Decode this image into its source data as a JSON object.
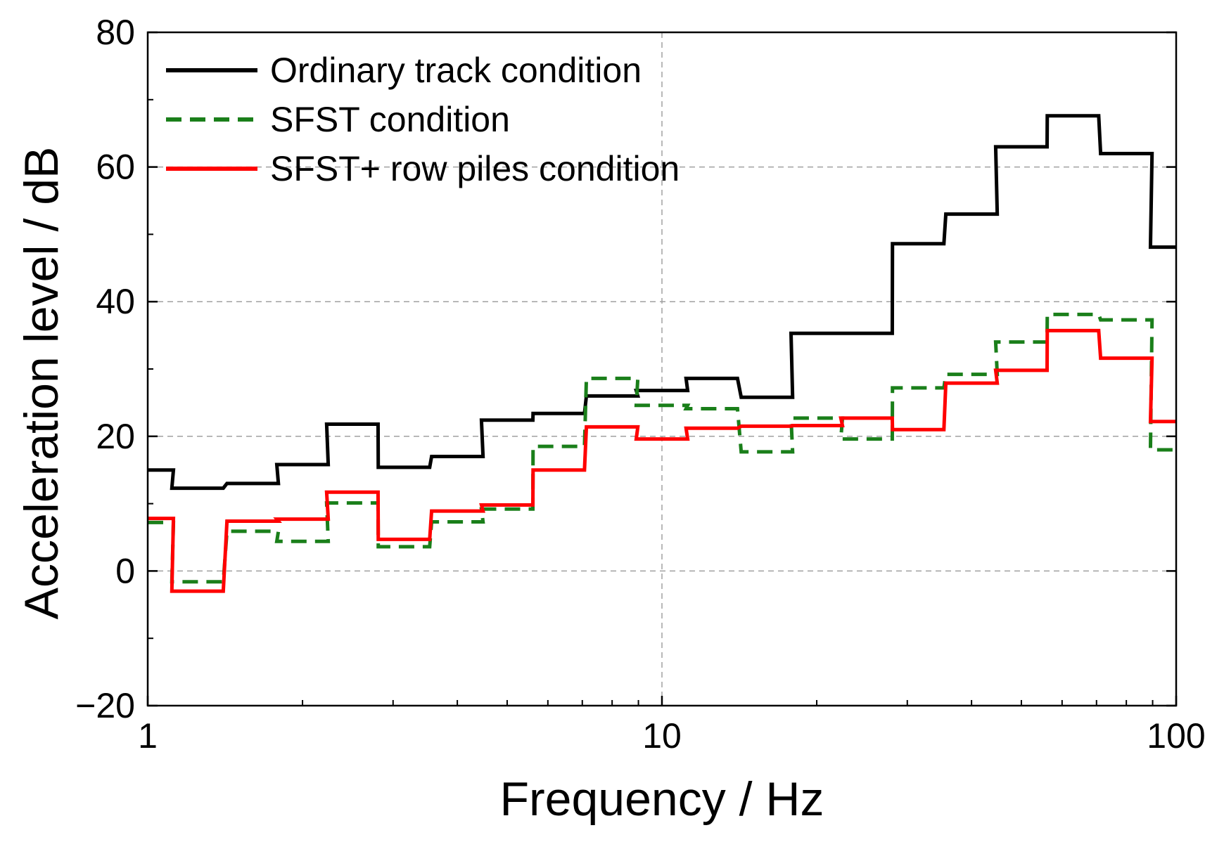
{
  "chart_data": {
    "type": "line",
    "step": true,
    "title": "",
    "xlabel": "Frequency / Hz",
    "ylabel": "Acceleration level / dB",
    "xscale": "log",
    "xlim": [
      1,
      100
    ],
    "ylim": [
      -20,
      80
    ],
    "xticks": [
      1,
      10,
      100
    ],
    "xtick_labels": [
      "1",
      "10",
      "100"
    ],
    "yticks": [
      -20,
      0,
      20,
      40,
      60,
      80
    ],
    "ytick_labels": [
      "−20",
      "0",
      "20",
      "40",
      "60",
      "80"
    ],
    "grid": true,
    "legend_position": "top-left",
    "bands_hz": [
      1,
      1.25,
      1.6,
      2,
      2.5,
      3.15,
      4,
      5,
      6.3,
      8,
      10,
      12.5,
      16,
      20,
      25,
      31.5,
      40,
      50,
      63,
      80,
      100
    ],
    "series": [
      {
        "name": "Ordinary track condition",
        "color": "#000000",
        "dash": "solid",
        "values": [
          15,
          12.3,
          13,
          15.8,
          21.8,
          15.4,
          17,
          22.4,
          23.4,
          26,
          26.8,
          28.6,
          25.8,
          35.3,
          35.3,
          48.6,
          53,
          63,
          67.6,
          62,
          48.1
        ]
      },
      {
        "name": "SFST condition",
        "color": "#1a7f1a",
        "dash": "dashed",
        "values": [
          7.2,
          -1.6,
          5.9,
          4.4,
          10.1,
          3.6,
          7.3,
          9.2,
          18.5,
          28.6,
          24.6,
          24.1,
          17.7,
          22.7,
          19.6,
          27.2,
          29.2,
          34,
          38.1,
          37.3,
          18
        ]
      },
      {
        "name": "SFST+ row piles condition",
        "color": "#ff0000",
        "dash": "solid",
        "values": [
          7.8,
          -3,
          7.4,
          7.7,
          11.7,
          4.7,
          8.9,
          9.8,
          15,
          21.4,
          19.6,
          21.2,
          21.5,
          21.6,
          22.7,
          21,
          27.9,
          29.8,
          35.7,
          31.6,
          22.2
        ]
      }
    ]
  }
}
